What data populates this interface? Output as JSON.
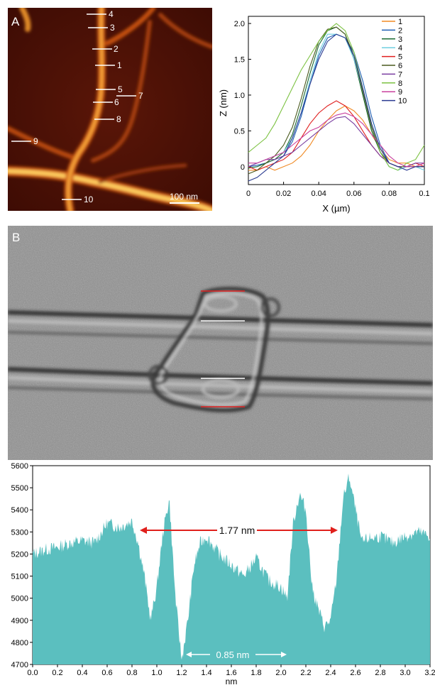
{
  "panel_a": {
    "letter": "A",
    "scale_bar": "100 nm",
    "profile_labels": [
      {
        "id": "1"
      },
      {
        "id": "2"
      },
      {
        "id": "3"
      },
      {
        "id": "4"
      },
      {
        "id": "5"
      },
      {
        "id": "6"
      },
      {
        "id": "7"
      },
      {
        "id": "8"
      },
      {
        "id": "9"
      },
      {
        "id": "10"
      }
    ]
  },
  "panel_b": {
    "letter": "B"
  },
  "colors": {
    "afm_dark": "#4a0f05",
    "afm_bright": "#ffd86a",
    "histogram_fill": "#5bbfbf",
    "arrow_red": "#e0201c",
    "marker_red": "#e02020",
    "marker_white": "#ffffff"
  },
  "chart_data": [
    {
      "type": "line",
      "xlabel": "X (µm)",
      "ylabel": "Z (nm)",
      "xlim": [
        0,
        0.1
      ],
      "ylim": [
        -0.25,
        2.1
      ],
      "xticks": [
        "0",
        "0.02",
        "0.04",
        "0.06",
        "0.08",
        "0.1"
      ],
      "yticks": [
        "0",
        "0.5",
        "1.0",
        "1.5",
        "2.0"
      ],
      "legend_position": "top-right",
      "x": [
        0,
        0.005,
        0.01,
        0.015,
        0.02,
        0.025,
        0.03,
        0.035,
        0.04,
        0.045,
        0.05,
        0.055,
        0.06,
        0.065,
        0.07,
        0.075,
        0.08,
        0.085,
        0.09,
        0.095,
        0.1
      ],
      "series": [
        {
          "name": "1",
          "color": "#f08a24",
          "values": [
            -0.05,
            -0.05,
            0,
            -0.05,
            0,
            0.05,
            0.15,
            0.3,
            0.5,
            0.65,
            0.78,
            0.85,
            0.78,
            0.65,
            0.45,
            0.25,
            0.1,
            0.05,
            0.05,
            0,
            0.05
          ]
        },
        {
          "name": "2",
          "color": "#1f5fb4",
          "values": [
            0,
            0.02,
            0.05,
            0.1,
            0.15,
            0.35,
            0.7,
            1.15,
            1.55,
            1.8,
            1.85,
            1.8,
            1.6,
            1.2,
            0.7,
            0.3,
            0.05,
            0,
            0,
            0,
            0
          ]
        },
        {
          "name": "3",
          "color": "#1b6b32",
          "values": [
            -0.02,
            0,
            0.05,
            0.1,
            0.2,
            0.45,
            0.85,
            1.3,
            1.7,
            1.9,
            1.95,
            1.85,
            1.5,
            1.0,
            0.5,
            0.2,
            0.05,
            0,
            0,
            0,
            0
          ]
        },
        {
          "name": "4",
          "color": "#6fcfe0",
          "values": [
            0,
            0.05,
            0.1,
            0.15,
            0.2,
            0.4,
            0.75,
            1.2,
            1.6,
            1.85,
            1.85,
            1.8,
            1.5,
            1.05,
            0.6,
            0.2,
            0,
            -0.05,
            0,
            0,
            -0.05
          ]
        },
        {
          "name": "5",
          "color": "#e02020",
          "values": [
            0,
            -0.05,
            0,
            0.05,
            0.1,
            0.2,
            0.4,
            0.6,
            0.75,
            0.85,
            0.92,
            0.85,
            0.7,
            0.5,
            0.3,
            0.15,
            0.05,
            0,
            0,
            0.05,
            0
          ]
        },
        {
          "name": "6",
          "color": "#4a5a1e",
          "values": [
            -0.1,
            -0.05,
            0.05,
            0.15,
            0.3,
            0.55,
            0.95,
            1.4,
            1.75,
            1.92,
            1.95,
            1.85,
            1.55,
            1.05,
            0.55,
            0.2,
            0.05,
            0,
            0,
            0,
            0
          ]
        },
        {
          "name": "7",
          "color": "#7a3ea0",
          "values": [
            0,
            0.05,
            0.1,
            0.1,
            0.15,
            0.2,
            0.3,
            0.4,
            0.5,
            0.6,
            0.68,
            0.7,
            0.6,
            0.45,
            0.3,
            0.15,
            0.05,
            0,
            0,
            0.05,
            0.05
          ]
        },
        {
          "name": "8",
          "color": "#7cc242",
          "values": [
            0.2,
            0.3,
            0.4,
            0.6,
            0.85,
            1.1,
            1.35,
            1.55,
            1.75,
            1.9,
            2.0,
            1.9,
            1.6,
            1.1,
            0.6,
            0.2,
            0,
            -0.05,
            0.05,
            0.1,
            0.3
          ]
        },
        {
          "name": "9",
          "color": "#c9409e",
          "values": [
            0.05,
            0.05,
            0.1,
            0.15,
            0.2,
            0.3,
            0.4,
            0.5,
            0.55,
            0.65,
            0.72,
            0.75,
            0.7,
            0.6,
            0.45,
            0.3,
            0.15,
            0.05,
            0,
            0,
            0.05
          ]
        },
        {
          "name": "10",
          "color": "#2a3a90",
          "values": [
            -0.2,
            -0.15,
            -0.05,
            0.05,
            0.15,
            0.4,
            0.75,
            1.15,
            1.5,
            1.75,
            1.85,
            1.8,
            1.55,
            1.1,
            0.6,
            0.25,
            0.05,
            0,
            -0.05,
            0,
            0
          ]
        }
      ]
    },
    {
      "type": "area",
      "xlabel": "nm",
      "ylabel": "",
      "xlim": [
        0,
        3.2
      ],
      "ylim": [
        4700,
        5600
      ],
      "xticks": [
        "0.0",
        "0.2",
        "0.4",
        "0.6",
        "0.8",
        "1.0",
        "1.2",
        "1.4",
        "1.6",
        "1.8",
        "2.0",
        "2.2",
        "2.4",
        "2.6",
        "2.8",
        "3.0",
        "3.2"
      ],
      "yticks": [
        "4700",
        "4800",
        "4900",
        "5000",
        "5100",
        "5200",
        "5300",
        "5400",
        "5500",
        "5600"
      ],
      "annotations": [
        "1.77 nm",
        "0.85 nm"
      ],
      "x": [
        0,
        0.1,
        0.2,
        0.3,
        0.4,
        0.5,
        0.6,
        0.7,
        0.8,
        0.85,
        0.9,
        0.95,
        1.0,
        1.05,
        1.1,
        1.15,
        1.2,
        1.25,
        1.3,
        1.35,
        1.4,
        1.5,
        1.6,
        1.7,
        1.8,
        1.9,
        2.0,
        2.05,
        2.1,
        2.15,
        2.2,
        2.25,
        2.3,
        2.35,
        2.4,
        2.45,
        2.5,
        2.55,
        2.6,
        2.65,
        2.7,
        2.8,
        2.9,
        3.0,
        3.1,
        3.2
      ],
      "values": [
        5200,
        5220,
        5230,
        5250,
        5260,
        5250,
        5340,
        5320,
        5350,
        5250,
        5100,
        4900,
        5050,
        5300,
        5450,
        5000,
        4720,
        4900,
        5150,
        5250,
        5280,
        5200,
        5150,
        5100,
        5180,
        5080,
        5050,
        5000,
        5350,
        5470,
        5400,
        5050,
        4950,
        4870,
        4900,
        5100,
        5450,
        5550,
        5400,
        5250,
        5270,
        5280,
        5250,
        5280,
        5300,
        5280
      ]
    }
  ]
}
